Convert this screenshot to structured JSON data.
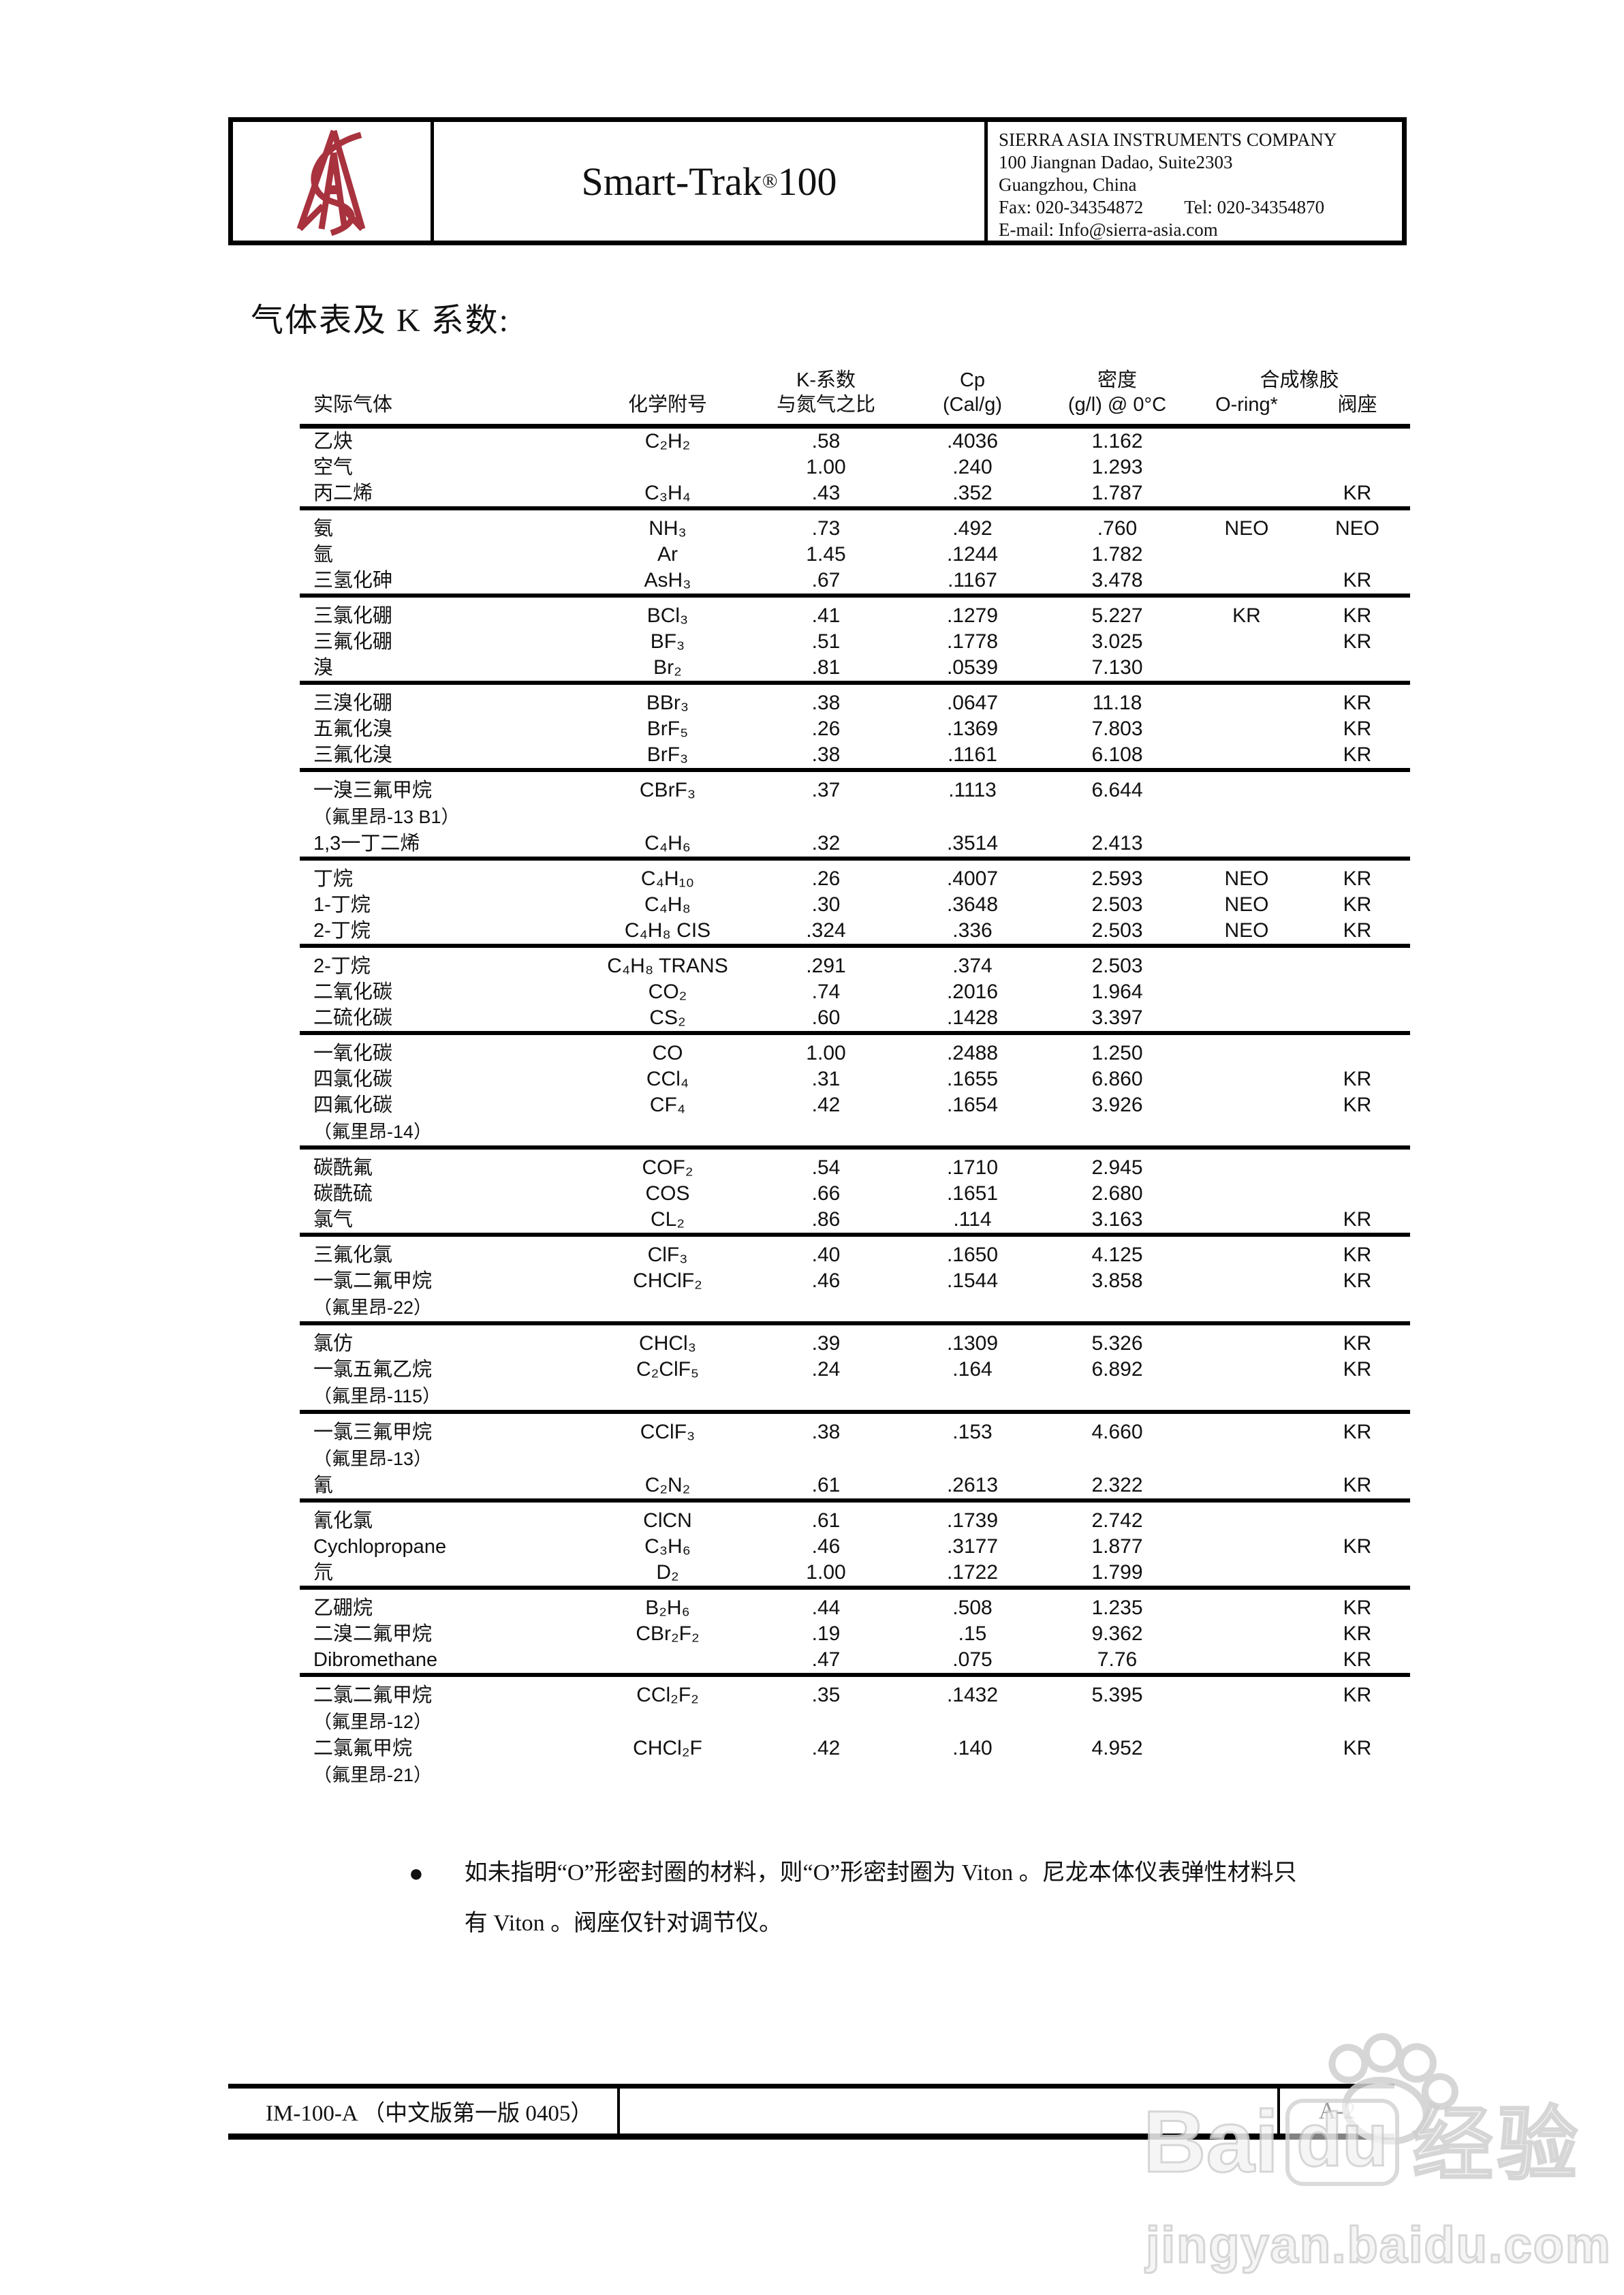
{
  "header": {
    "product_name": "Smart-Trak",
    "product_reg": "®",
    "product_number": "100",
    "company": {
      "name": "SIERRA ASIA INSTRUMENTS COMPANY",
      "address_line1": "100 Jiangnan Dadao, Suite2303",
      "address_line2": "Guangzhou, China",
      "fax": "Fax: 020-34354872",
      "tel": "Tel:  020-34354870",
      "email": "E-mail: Info@sierra-asia.com"
    }
  },
  "page_title": "气体表及 K 系数:",
  "table": {
    "headers": {
      "gas": "实际气体",
      "formula": "化学附号",
      "k_line1": "K-系数",
      "k_line2": "与氮气之比",
      "cp_line1": "Cp",
      "cp_line2": "(Cal/g)",
      "density_line1": "密度",
      "density_line2": "(g/l) @ 0°C",
      "rubber_group": "合成橡胶",
      "oring": "O-ring*",
      "seat": "阀座"
    },
    "rows": [
      {
        "name": "乙炔",
        "formula": "C₂H₂",
        "k": ".58",
        "cp": ".4036",
        "d": "1.162",
        "o": "",
        "s": "",
        "g": false,
        "sub": ""
      },
      {
        "name": "空气",
        "formula": "",
        "k": "1.00",
        "cp": ".240",
        "d": "1.293",
        "o": "",
        "s": "",
        "g": false,
        "sub": ""
      },
      {
        "name": "丙二烯",
        "formula": "C₃H₄",
        "k": ".43",
        "cp": ".352",
        "d": "1.787",
        "o": "",
        "s": "KR",
        "g": false,
        "sub": ""
      },
      {
        "name": "氨",
        "formula": "NH₃",
        "k": ".73",
        "cp": ".492",
        "d": ".760",
        "o": "NEO",
        "s": "NEO",
        "g": true,
        "sub": ""
      },
      {
        "name": "氩",
        "formula": "Ar",
        "k": "1.45",
        "cp": ".1244",
        "d": "1.782",
        "o": "",
        "s": "",
        "g": false,
        "sub": ""
      },
      {
        "name": "三氢化砷",
        "formula": "AsH₃",
        "k": ".67",
        "cp": ".1167",
        "d": "3.478",
        "o": "",
        "s": "KR",
        "g": false,
        "sub": ""
      },
      {
        "name": "三氯化硼",
        "formula": "BCl₃",
        "k": ".41",
        "cp": ".1279",
        "d": "5.227",
        "o": "KR",
        "s": "KR",
        "g": true,
        "sub": ""
      },
      {
        "name": "三氟化硼",
        "formula": "BF₃",
        "k": ".51",
        "cp": ".1778",
        "d": "3.025",
        "o": "",
        "s": "KR",
        "g": false,
        "sub": ""
      },
      {
        "name": "溴",
        "formula": "Br₂",
        "k": ".81",
        "cp": ".0539",
        "d": "7.130",
        "o": "",
        "s": "",
        "g": false,
        "sub": ""
      },
      {
        "name": "三溴化硼",
        "formula": "BBr₃",
        "k": ".38",
        "cp": ".0647",
        "d": "11.18",
        "o": "",
        "s": "KR",
        "g": true,
        "sub": ""
      },
      {
        "name": "五氟化溴",
        "formula": "BrF₅",
        "k": ".26",
        "cp": ".1369",
        "d": "7.803",
        "o": "",
        "s": "KR",
        "g": false,
        "sub": ""
      },
      {
        "name": "三氟化溴",
        "formula": "BrF₃",
        "k": ".38",
        "cp": ".1161",
        "d": "6.108",
        "o": "",
        "s": "KR",
        "g": false,
        "sub": ""
      },
      {
        "name": "一溴三氟甲烷",
        "formula": "CBrF₃",
        "k": ".37",
        "cp": ".1113",
        "d": "6.644",
        "o": "",
        "s": "",
        "g": true,
        "sub": "（氟里昂-13 B1）"
      },
      {
        "name": "1,3一丁二烯",
        "formula": "C₄H₆",
        "k": ".32",
        "cp": ".3514",
        "d": "2.413",
        "o": "",
        "s": "",
        "g": false,
        "sub": ""
      },
      {
        "name": "丁烷",
        "formula": "C₄H₁₀",
        "k": ".26",
        "cp": ".4007",
        "d": "2.593",
        "o": "NEO",
        "s": "KR",
        "g": true,
        "sub": ""
      },
      {
        "name": "1-丁烷",
        "formula": "C₄H₈",
        "k": ".30",
        "cp": ".3648",
        "d": "2.503",
        "o": "NEO",
        "s": "KR",
        "g": false,
        "sub": ""
      },
      {
        "name": "2-丁烷",
        "formula": "C₄H₈ CIS",
        "k": ".324",
        "cp": ".336",
        "d": "2.503",
        "o": "NEO",
        "s": "KR",
        "g": false,
        "sub": ""
      },
      {
        "name": "2-丁烷",
        "formula": "C₄H₈ TRANS",
        "k": ".291",
        "cp": ".374",
        "d": "2.503",
        "o": "",
        "s": "",
        "g": true,
        "sub": ""
      },
      {
        "name": "二氧化碳",
        "formula": "CO₂",
        "k": ".74",
        "cp": ".2016",
        "d": "1.964",
        "o": "",
        "s": "",
        "g": false,
        "sub": ""
      },
      {
        "name": "二硫化碳",
        "formula": "CS₂",
        "k": ".60",
        "cp": ".1428",
        "d": "3.397",
        "o": "",
        "s": "",
        "g": false,
        "sub": ""
      },
      {
        "name": "一氧化碳",
        "formula": "CO",
        "k": "1.00",
        "cp": ".2488",
        "d": "1.250",
        "o": "",
        "s": "",
        "g": true,
        "sub": ""
      },
      {
        "name": "四氯化碳",
        "formula": "CCl₄",
        "k": ".31",
        "cp": ".1655",
        "d": "6.860",
        "o": "",
        "s": "KR",
        "g": false,
        "sub": ""
      },
      {
        "name": "四氟化碳",
        "formula": "CF₄",
        "k": ".42",
        "cp": ".1654",
        "d": "3.926",
        "o": "",
        "s": "KR",
        "g": false,
        "sub": "（氟里昂-14）"
      },
      {
        "name": "碳酰氟",
        "formula": "COF₂",
        "k": ".54",
        "cp": ".1710",
        "d": "2.945",
        "o": "",
        "s": "",
        "g": true,
        "sub": ""
      },
      {
        "name": "碳酰硫",
        "formula": "COS",
        "k": ".66",
        "cp": ".1651",
        "d": "2.680",
        "o": "",
        "s": "",
        "g": false,
        "sub": ""
      },
      {
        "name": "氯气",
        "formula": "CL₂",
        "k": ".86",
        "cp": ".114",
        "d": "3.163",
        "o": "",
        "s": "KR",
        "g": false,
        "sub": ""
      },
      {
        "name": "三氟化氯",
        "formula": "ClF₃",
        "k": ".40",
        "cp": ".1650",
        "d": "4.125",
        "o": "",
        "s": "KR",
        "g": true,
        "sub": ""
      },
      {
        "name": "一氯二氟甲烷",
        "formula": "CHClF₂",
        "k": ".46",
        "cp": ".1544",
        "d": "3.858",
        "o": "",
        "s": "KR",
        "g": false,
        "sub": "（氟里昂-22）"
      },
      {
        "name": "氯仿",
        "formula": "CHCl₃",
        "k": ".39",
        "cp": ".1309",
        "d": "5.326",
        "o": "",
        "s": "KR",
        "g": true,
        "sub": ""
      },
      {
        "name": "一氯五氟乙烷",
        "formula": "C₂ClF₅",
        "k": ".24",
        "cp": ".164",
        "d": "6.892",
        "o": "",
        "s": "KR",
        "g": false,
        "sub": "（氟里昂-115）"
      },
      {
        "name": "一氯三氟甲烷",
        "formula": "CClF₃",
        "k": ".38",
        "cp": ".153",
        "d": "4.660",
        "o": "",
        "s": "KR",
        "g": true,
        "sub": "（氟里昂-13）"
      },
      {
        "name": "氰",
        "formula": "C₂N₂",
        "k": ".61",
        "cp": ".2613",
        "d": "2.322",
        "o": "",
        "s": "KR",
        "g": false,
        "sub": ""
      },
      {
        "name": "氰化氯",
        "formula": "ClCN",
        "k": ".61",
        "cp": ".1739",
        "d": "2.742",
        "o": "",
        "s": "",
        "g": true,
        "sub": ""
      },
      {
        "name": "Cychlopropane",
        "formula": "C₃H₆",
        "k": ".46",
        "cp": ".3177",
        "d": "1.877",
        "o": "",
        "s": "KR",
        "g": false,
        "sub": ""
      },
      {
        "name": "氘",
        "formula": "D₂",
        "k": "1.00",
        "cp": ".1722",
        "d": "1.799",
        "o": "",
        "s": "",
        "g": false,
        "sub": ""
      },
      {
        "name": "乙硼烷",
        "formula": "B₂H₆",
        "k": ".44",
        "cp": ".508",
        "d": "1.235",
        "o": "",
        "s": "KR",
        "g": true,
        "sub": ""
      },
      {
        "name": "二溴二氟甲烷",
        "formula": "CBr₂F₂",
        "k": ".19",
        "cp": ".15",
        "d": "9.362",
        "o": "",
        "s": "KR",
        "g": false,
        "sub": ""
      },
      {
        "name": "Dibromethane",
        "formula": "",
        "k": ".47",
        "cp": ".075",
        "d": "7.76",
        "o": "",
        "s": "KR",
        "g": false,
        "sub": ""
      },
      {
        "name": "二氯二氟甲烷",
        "formula": "CCl₂F₂",
        "k": ".35",
        "cp": ".1432",
        "d": "5.395",
        "o": "",
        "s": "KR",
        "g": true,
        "sub": "（氟里昂-12）"
      },
      {
        "name": "二氯氟甲烷",
        "formula": "CHCl₂F",
        "k": ".42",
        "cp": ".140",
        "d": "4.952",
        "o": "",
        "s": "KR",
        "g": false,
        "sub": "（氟里昂-21）"
      }
    ]
  },
  "note": {
    "bullet": "●",
    "line1": "如未指明“O”形密封圈的材料，则“O”形密封圈为 Viton 。尼龙本体仪表弹性材料只",
    "line2": "有 Viton 。阀座仅针对调节仪。"
  },
  "footer": {
    "doc_id": "IM-100-A （中文版第一版 0405）",
    "page_number": "A-2"
  },
  "watermark": {
    "bai": "Bai",
    "du": "du",
    "jingyan": "经验",
    "url": "jingyan.baidu.com"
  },
  "colors": {
    "logo_red": "#a8323e",
    "watermark_gray": "#cfcfcf",
    "ink": "#111111"
  }
}
